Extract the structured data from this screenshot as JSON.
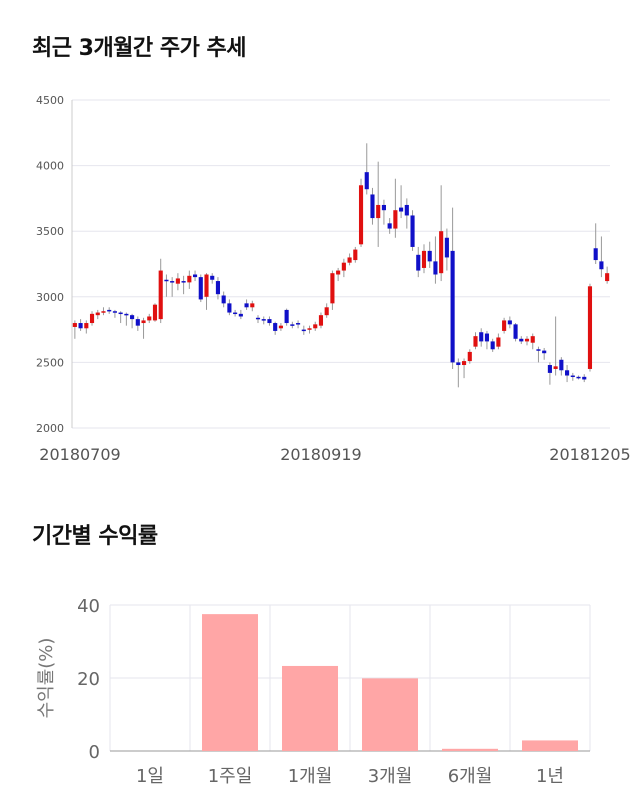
{
  "section_titles": {
    "price_trend": "최근 3개월간 주가 추세",
    "period_returns": "기간별 수익률"
  },
  "colors": {
    "up": "#e01010",
    "down": "#1010c8",
    "bar": "#ffa6a6",
    "grid": "#e6e6ee"
  },
  "chart_data": [
    {
      "type": "candlestick",
      "title": "최근 3개월간 주가 추세",
      "ylim": [
        2000,
        4500
      ],
      "yticks": [
        2000,
        2500,
        3000,
        3500,
        4000,
        4500
      ],
      "xtick_labels": [
        "20180709",
        "20180919",
        "20181205"
      ],
      "grid": true,
      "candles": [
        [
          2770,
          2800,
          2680,
          2820
        ],
        [
          2800,
          2760,
          2740,
          2830
        ],
        [
          2760,
          2800,
          2720,
          2820
        ],
        [
          2800,
          2870,
          2780,
          2890
        ],
        [
          2860,
          2880,
          2830,
          2900
        ],
        [
          2880,
          2890,
          2860,
          2920
        ],
        [
          2900,
          2890,
          2870,
          2920
        ],
        [
          2890,
          2880,
          2840,
          2900
        ],
        [
          2880,
          2870,
          2800,
          2890
        ],
        [
          2870,
          2860,
          2780,
          2880
        ],
        [
          2860,
          2830,
          2760,
          2870
        ],
        [
          2830,
          2780,
          2740,
          2850
        ],
        [
          2800,
          2820,
          2680,
          2840
        ],
        [
          2820,
          2850,
          2800,
          2870
        ],
        [
          2820,
          2940,
          2810,
          2950
        ],
        [
          2830,
          3200,
          2800,
          3290
        ],
        [
          3130,
          3120,
          3000,
          3170
        ],
        [
          3120,
          3110,
          3000,
          3150
        ],
        [
          3100,
          3140,
          3050,
          3180
        ],
        [
          3120,
          3110,
          3020,
          3160
        ],
        [
          3110,
          3160,
          3060,
          3200
        ],
        [
          3170,
          3150,
          3120,
          3200
        ],
        [
          3150,
          2980,
          2960,
          3170
        ],
        [
          3000,
          3170,
          2900,
          3180
        ],
        [
          3160,
          3130,
          3100,
          3180
        ],
        [
          3120,
          3020,
          2980,
          3150
        ],
        [
          3010,
          2950,
          2920,
          3040
        ],
        [
          2950,
          2880,
          2860,
          2980
        ],
        [
          2880,
          2870,
          2850,
          2900
        ],
        [
          2870,
          2850,
          2830,
          2900
        ],
        [
          2950,
          2920,
          2900,
          2980
        ],
        [
          2920,
          2950,
          2890,
          2970
        ],
        [
          2840,
          2830,
          2800,
          2860
        ],
        [
          2830,
          2820,
          2790,
          2850
        ],
        [
          2830,
          2800,
          2780,
          2850
        ],
        [
          2800,
          2740,
          2710,
          2810
        ],
        [
          2760,
          2780,
          2740,
          2800
        ],
        [
          2900,
          2800,
          2780,
          2910
        ],
        [
          2790,
          2780,
          2760,
          2810
        ],
        [
          2800,
          2790,
          2760,
          2820
        ],
        [
          2750,
          2740,
          2710,
          2780
        ],
        [
          2750,
          2760,
          2720,
          2780
        ],
        [
          2760,
          2790,
          2740,
          2810
        ],
        [
          2780,
          2860,
          2760,
          2880
        ],
        [
          2860,
          2920,
          2840,
          2950
        ],
        [
          2950,
          3180,
          2900,
          3200
        ],
        [
          3170,
          3200,
          3120,
          3220
        ],
        [
          3200,
          3260,
          3150,
          3290
        ],
        [
          3260,
          3300,
          3240,
          3330
        ],
        [
          3280,
          3360,
          3260,
          3380
        ],
        [
          3400,
          3850,
          3380,
          3900
        ],
        [
          3950,
          3820,
          3780,
          4170
        ],
        [
          3780,
          3600,
          3550,
          3830
        ],
        [
          3600,
          3700,
          3380,
          4030
        ],
        [
          3700,
          3660,
          3550,
          3740
        ],
        [
          3560,
          3520,
          3480,
          3600
        ],
        [
          3520,
          3660,
          3450,
          3900
        ],
        [
          3680,
          3650,
          3600,
          3850
        ],
        [
          3700,
          3620,
          3520,
          3750
        ],
        [
          3620,
          3380,
          3350,
          3660
        ],
        [
          3320,
          3200,
          3150,
          3380
        ],
        [
          3220,
          3350,
          3180,
          3400
        ],
        [
          3350,
          3270,
          3220,
          3420
        ],
        [
          3270,
          3170,
          3100,
          3460
        ],
        [
          3180,
          3500,
          3120,
          3850
        ],
        [
          3450,
          3300,
          3200,
          3520
        ],
        [
          3350,
          2500,
          2450,
          3680
        ],
        [
          2500,
          2480,
          2310,
          2530
        ],
        [
          2480,
          2510,
          2380,
          2530
        ],
        [
          2510,
          2580,
          2490,
          2600
        ],
        [
          2620,
          2700,
          2600,
          2730
        ],
        [
          2730,
          2660,
          2620,
          2760
        ],
        [
          2720,
          2660,
          2600,
          2740
        ],
        [
          2660,
          2600,
          2580,
          2680
        ],
        [
          2620,
          2690,
          2600,
          2720
        ],
        [
          2740,
          2820,
          2720,
          2840
        ],
        [
          2820,
          2790,
          2760,
          2850
        ],
        [
          2790,
          2680,
          2660,
          2800
        ],
        [
          2680,
          2660,
          2640,
          2700
        ],
        [
          2660,
          2680,
          2630,
          2700
        ],
        [
          2650,
          2700,
          2600,
          2720
        ],
        [
          2600,
          2590,
          2500,
          2620
        ],
        [
          2590,
          2570,
          2520,
          2610
        ],
        [
          2480,
          2420,
          2330,
          2500
        ],
        [
          2450,
          2470,
          2400,
          2850
        ],
        [
          2520,
          2440,
          2400,
          2540
        ],
        [
          2440,
          2400,
          2350,
          2480
        ],
        [
          2400,
          2390,
          2360,
          2420
        ],
        [
          2390,
          2380,
          2370,
          2400
        ],
        [
          2390,
          2370,
          2350,
          2410
        ],
        [
          2450,
          3080,
          2430,
          3100
        ],
        [
          3370,
          3280,
          3250,
          3560
        ],
        [
          3270,
          3210,
          3150,
          3460
        ],
        [
          3120,
          3180,
          3100,
          3230
        ]
      ]
    },
    {
      "type": "bar",
      "title": "기간별 수익률",
      "categories": [
        "1일",
        "1주일",
        "1개월",
        "3개월",
        "6개월",
        "1년"
      ],
      "values": [
        0,
        37.5,
        23.3,
        19.9,
        0.6,
        2.9
      ],
      "ylabel": "수익률(%)",
      "ylim": [
        0,
        40
      ],
      "yticks": [
        0,
        20,
        40
      ],
      "grid": true
    }
  ]
}
